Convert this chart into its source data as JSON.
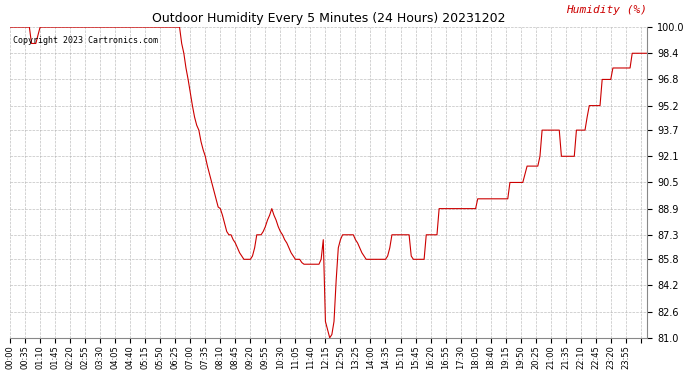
{
  "title": "Outdoor Humidity Every 5 Minutes (24 Hours) 20231202",
  "ylabel": "Humidity (%)",
  "copyright": "Copyright 2023 Cartronics.com",
  "line_color": "#cc0000",
  "ylabel_color": "#cc0000",
  "background_color": "#ffffff",
  "grid_color": "#b0b0b0",
  "ylim": [
    81.0,
    100.0
  ],
  "yticks": [
    81.0,
    82.6,
    84.2,
    85.8,
    87.3,
    88.9,
    90.5,
    92.1,
    93.7,
    95.2,
    96.8,
    98.4,
    100.0
  ],
  "xtick_interval": 7,
  "humidity_values": [
    100.0,
    100.0,
    100.0,
    100.0,
    100.0,
    100.0,
    100.0,
    100.0,
    100.0,
    100.0,
    99.0,
    99.0,
    99.0,
    99.5,
    100.0,
    100.0,
    100.0,
    100.0,
    100.0,
    100.0,
    100.0,
    100.0,
    100.0,
    100.0,
    100.0,
    100.0,
    100.0,
    100.0,
    100.0,
    100.0,
    100.0,
    100.0,
    100.0,
    100.0,
    100.0,
    100.0,
    100.0,
    100.0,
    100.0,
    100.0,
    100.0,
    100.0,
    100.0,
    100.0,
    100.0,
    100.0,
    100.0,
    100.0,
    100.0,
    100.0,
    100.0,
    100.0,
    100.0,
    100.0,
    100.0,
    100.0,
    100.0,
    100.0,
    100.0,
    100.0,
    100.0,
    100.0,
    100.0,
    100.0,
    100.0,
    100.0,
    100.0,
    100.0,
    100.0,
    100.0,
    100.0,
    100.0,
    100.0,
    100.0,
    100.0,
    100.0,
    100.0,
    100.0,
    100.0,
    100.0,
    99.0,
    98.4,
    97.5,
    96.8,
    96.0,
    95.2,
    94.5,
    94.0,
    93.7,
    93.0,
    92.5,
    92.1,
    91.5,
    91.0,
    90.5,
    90.0,
    89.5,
    89.0,
    88.9,
    88.5,
    88.0,
    87.5,
    87.3,
    87.3,
    87.0,
    86.8,
    86.5,
    86.2,
    86.0,
    85.8,
    85.8,
    85.8,
    85.8,
    86.0,
    86.5,
    87.3,
    87.3,
    87.3,
    87.5,
    87.8,
    88.2,
    88.5,
    88.9,
    88.5,
    88.2,
    87.8,
    87.5,
    87.3,
    87.0,
    86.8,
    86.5,
    86.2,
    86.0,
    85.8,
    85.8,
    85.8,
    85.6,
    85.5,
    85.5,
    85.5,
    85.5,
    85.5,
    85.5,
    85.5,
    85.5,
    85.8,
    87.0,
    82.0,
    81.5,
    81.0,
    81.2,
    82.0,
    84.5,
    86.5,
    87.0,
    87.3,
    87.3,
    87.3,
    87.3,
    87.3,
    87.3,
    87.0,
    86.8,
    86.5,
    86.2,
    86.0,
    85.8,
    85.8,
    85.8,
    85.8,
    85.8,
    85.8,
    85.8,
    85.8,
    85.8,
    85.8,
    86.0,
    86.5,
    87.3,
    87.3,
    87.3,
    87.3,
    87.3,
    87.3,
    87.3,
    87.3,
    87.3,
    86.0,
    85.8,
    85.8,
    85.8,
    85.8,
    85.8,
    85.8,
    87.3,
    87.3,
    87.3,
    87.3,
    87.3,
    87.3,
    88.9,
    88.9,
    88.9,
    88.9,
    88.9,
    88.9,
    88.9,
    88.9,
    88.9,
    88.9,
    88.9,
    88.9,
    88.9,
    88.9,
    88.9,
    88.9,
    88.9,
    88.9,
    89.5,
    89.5,
    89.5,
    89.5,
    89.5,
    89.5,
    89.5,
    89.5,
    89.5,
    89.5,
    89.5,
    89.5,
    89.5,
    89.5,
    89.5,
    90.5,
    90.5,
    90.5,
    90.5,
    90.5,
    90.5,
    90.5,
    91.0,
    91.5,
    91.5,
    91.5,
    91.5,
    91.5,
    91.5,
    92.1,
    93.7,
    93.7,
    93.7,
    93.7,
    93.7,
    93.7,
    93.7,
    93.7,
    93.7,
    92.1,
    92.1,
    92.1,
    92.1,
    92.1,
    92.1,
    92.1,
    93.7,
    93.7,
    93.7,
    93.7,
    93.7,
    94.5,
    95.2,
    95.2,
    95.2,
    95.2,
    95.2,
    95.2,
    96.8,
    96.8,
    96.8,
    96.8,
    96.8,
    97.5,
    97.5,
    97.5,
    97.5,
    97.5,
    97.5,
    97.5,
    97.5,
    97.5,
    98.4,
    98.4,
    98.4,
    98.4,
    98.4,
    98.4,
    98.4,
    98.4
  ]
}
